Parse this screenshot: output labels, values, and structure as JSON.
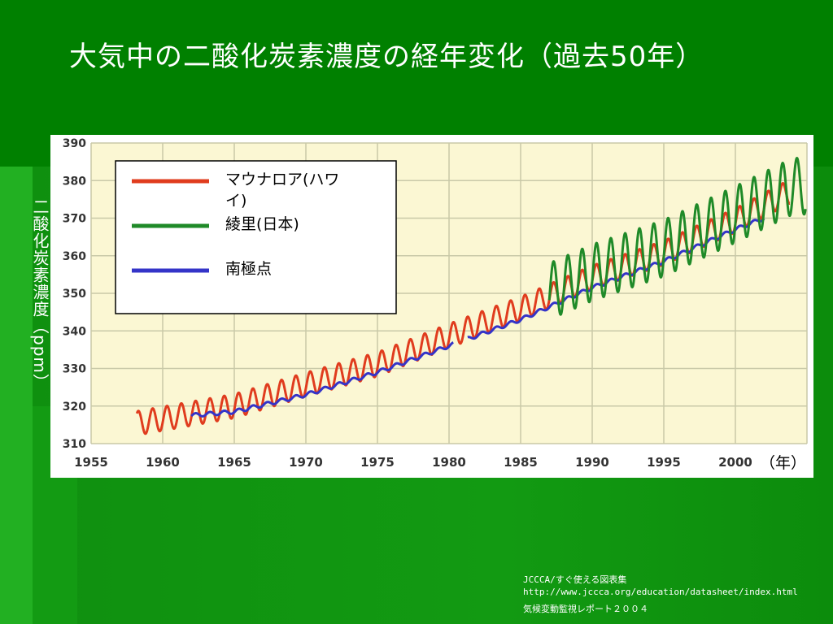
{
  "title": "大気中の二酸化炭素濃度の経年変化（過去50年）",
  "ylabel": "二酸化炭素濃度（ppm）",
  "unit_label": "（年）",
  "footer": {
    "line1": "JCCCA/すぐ使える図表集",
    "line2": "http://www.jccca.org/education/datasheet/index.html",
    "line3": "気候変動監視レポート２００４"
  },
  "chart_data": {
    "type": "line",
    "xlim": [
      1955,
      2005
    ],
    "ylim": [
      310,
      390
    ],
    "xticks": [
      1955,
      1960,
      1965,
      1970,
      1975,
      1980,
      1985,
      1990,
      1995,
      2000
    ],
    "yticks": [
      310,
      320,
      330,
      340,
      350,
      360,
      370,
      380,
      390
    ],
    "grid": true,
    "legend_position": "top-left",
    "series": [
      {
        "name": "マウナロア(ハワイ)",
        "color": "#e03c1e",
        "x_start": 1958.2,
        "x_end": 2003.8,
        "trend": [
          [
            1958,
            315.3
          ],
          [
            1965,
            320.0
          ],
          [
            1970,
            325.7
          ],
          [
            1975,
            331.1
          ],
          [
            1980,
            338.7
          ],
          [
            1985,
            345.9
          ],
          [
            1990,
            354.2
          ],
          [
            1995,
            360.8
          ],
          [
            2000,
            369.4
          ],
          [
            2004,
            377.5
          ]
        ],
        "seasonal_amplitude": 3.2
      },
      {
        "name": "綾里(日本)",
        "color": "#1f8a28",
        "x_start": 1987.0,
        "x_end": 2004.9,
        "trend": [
          [
            1987,
            350.5
          ],
          [
            1990,
            355.5
          ],
          [
            1995,
            362.0
          ],
          [
            2000,
            371.0
          ],
          [
            2004,
            378.5
          ]
        ],
        "seasonal_amplitude": 7.5
      },
      {
        "name": "南極点",
        "color": "#3434c8",
        "x_start": 1962.0,
        "x_end": 2002.0,
        "gap": [
          1980.3,
          1981.3
        ],
        "trend": [
          [
            1962,
            317.5
          ],
          [
            1965,
            318.5
          ],
          [
            1970,
            323.0
          ],
          [
            1975,
            329.0
          ],
          [
            1980,
            336.0
          ],
          [
            1985,
            343.0
          ],
          [
            1990,
            351.5
          ],
          [
            1995,
            358.5
          ],
          [
            2000,
            367.0
          ],
          [
            2002,
            370.0
          ]
        ],
        "seasonal_amplitude": 0.5
      }
    ]
  }
}
